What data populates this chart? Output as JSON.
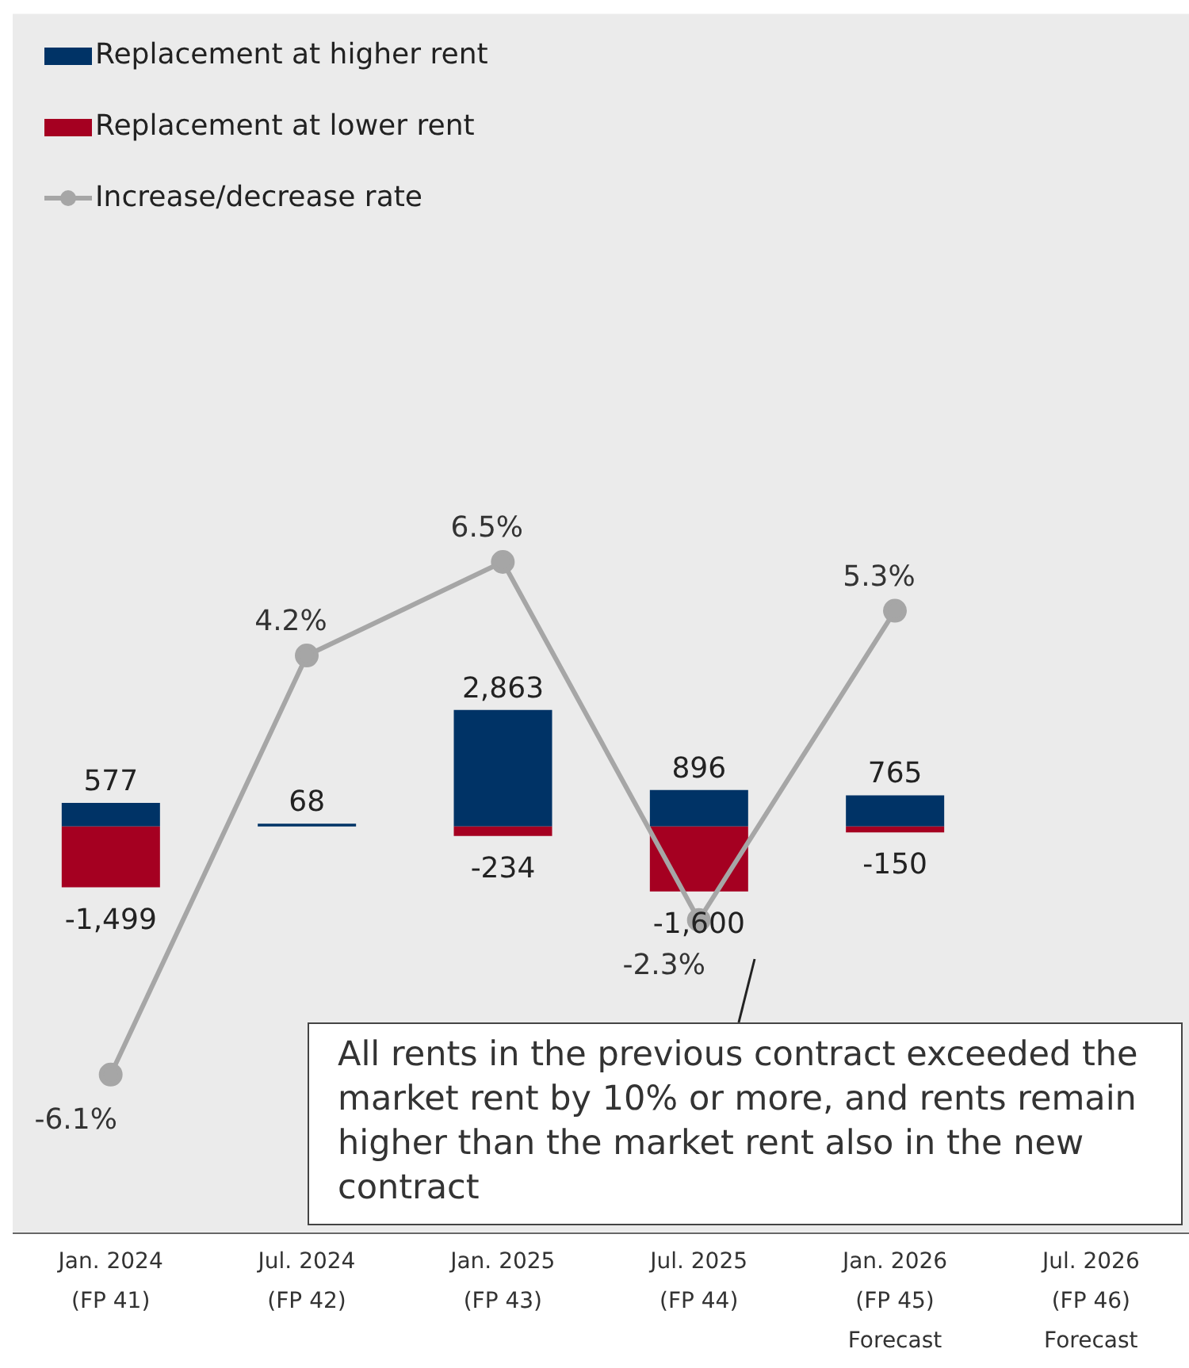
{
  "chart_data": {
    "type": "bar",
    "stacked": true,
    "categories": [
      "Jan. 2024\n(FP 41)",
      "Jul. 2024\n(FP 42)",
      "Jan. 2025\n(FP 43)",
      "Jul. 2025\n(FP 44)",
      "Jan. 2026\n(FP 45)\nForecast",
      "Jul. 2026\n(FP 46)\nForecast"
    ],
    "series": [
      {
        "name": "Replacement at higher rent",
        "color": "#003366",
        "values": [
          577,
          68,
          2863,
          896,
          765,
          null
        ],
        "value_labels": [
          "577",
          "68",
          "2,863",
          "896",
          "765",
          null
        ]
      },
      {
        "name": "Replacement at lower rent",
        "color": "#a50021",
        "values": [
          -1499,
          null,
          -234,
          -1600,
          -150,
          null
        ],
        "value_labels": [
          "-1,499",
          null,
          "-234",
          "-1,600",
          "-150",
          null
        ]
      },
      {
        "name": "Increase/decrease rate",
        "type": "line",
        "axis": "y2",
        "color": "#a6a6a6",
        "values": [
          -6.1,
          4.2,
          6.5,
          -2.3,
          5.3,
          null
        ],
        "value_labels": [
          "-6.1%",
          "4.2%",
          "6.5%",
          "-2.3%",
          "5.3%",
          null
        ]
      }
    ],
    "ylim": [
      -10000,
      20000
    ],
    "y2lim": [
      -10,
      20
    ],
    "tick_labels": "x",
    "grid": "y",
    "legend": "top left",
    "marker": "circle",
    "line_style": "solid",
    "annotations": [
      "All rents in the previous contract exceeded the market rent by 10% or more, and rents remain higher than the market rent also in the new contract"
    ]
  }
}
